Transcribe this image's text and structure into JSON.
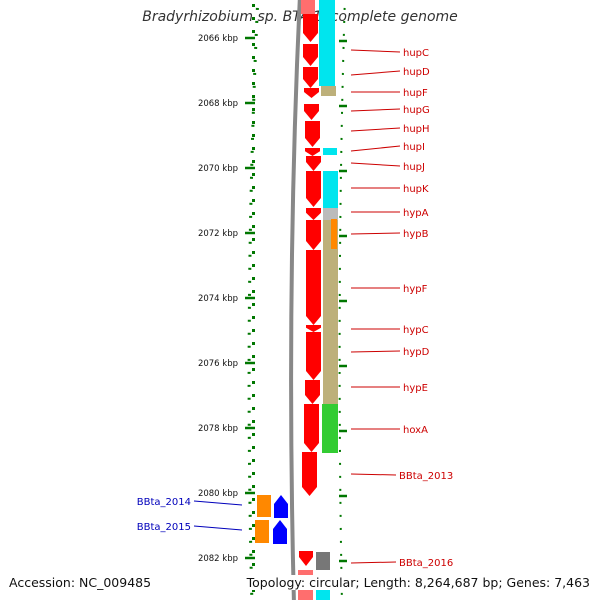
{
  "title": "Bradyrhizobium sp. BTAi1, complete genome",
  "accession": "Accession: NC_009485",
  "summary": "Topology: circular; Length: 8,264,687 bp; Genes: 7,463",
  "colors": {
    "forward_gene": "#ff0000",
    "reverse_gene": "#0000ff",
    "orf_orange": "#ff8800",
    "cog_cyan": "#00e5ee",
    "cog_khaki": "#bdb07a",
    "cog_green": "#33cc33",
    "cog_gray": "#bbbbbb",
    "right_label": "#cc0000",
    "left_label": "#0000bb",
    "tick": "#007700",
    "backbone": "#888888"
  },
  "scale": {
    "unit": "kbp",
    "major_ticks_kbp": [
      2066,
      2068,
      2070,
      2072,
      2074,
      2076,
      2078,
      2080,
      2082
    ]
  },
  "right_labels": [
    "hupC",
    "hupD",
    "hupF",
    "hupG",
    "hupH",
    "hupI",
    "hupJ",
    "hupK",
    "hypA",
    "hypB",
    "hypF",
    "hypC",
    "hypD",
    "hypE",
    "hoxA",
    "BBta_2013",
    "BBta_2016"
  ],
  "left_labels": [
    "BBta_2014",
    "BBta_2015"
  ]
}
